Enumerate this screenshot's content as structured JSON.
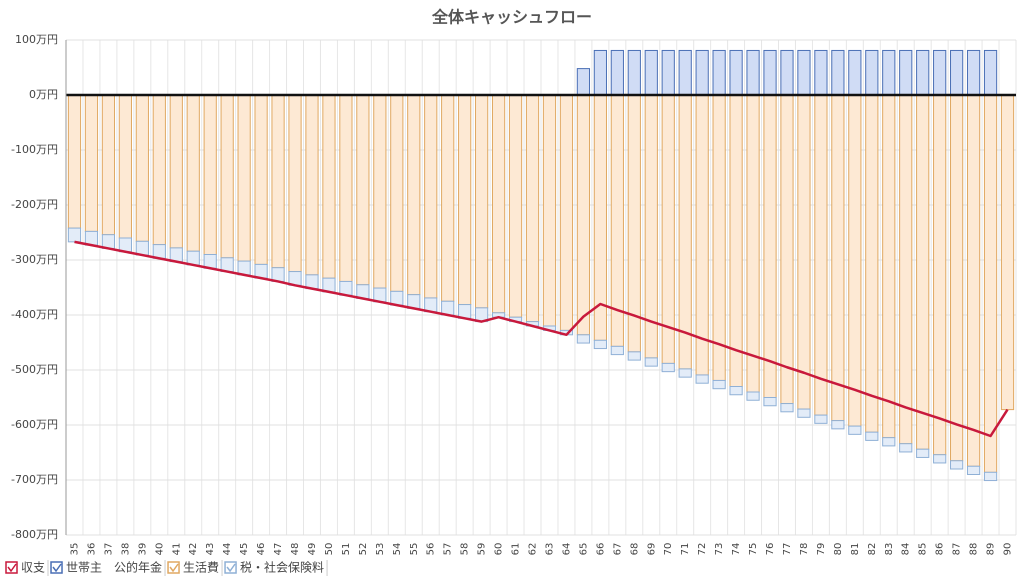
{
  "chart_data": {
    "type": "bar",
    "title": "全体キャッシュフロー",
    "categories": [
      "35",
      "36",
      "37",
      "38",
      "39",
      "40",
      "41",
      "42",
      "43",
      "44",
      "45",
      "46",
      "47",
      "48",
      "49",
      "50",
      "51",
      "52",
      "53",
      "54",
      "55",
      "56",
      "57",
      "58",
      "59",
      "60",
      "61",
      "62",
      "63",
      "64",
      "65",
      "66",
      "67",
      "68",
      "69",
      "70",
      "71",
      "72",
      "73",
      "74",
      "75",
      "76",
      "77",
      "78",
      "79",
      "80",
      "81",
      "82",
      "83",
      "84",
      "85",
      "86",
      "87",
      "88",
      "89",
      "90"
    ],
    "series": [
      {
        "name": "収支",
        "type": "line",
        "color": "#c8193c",
        "values": [
          -267,
          -273,
          -279,
          -285,
          -291,
          -297,
          -303,
          -309,
          -315,
          -321,
          -327,
          -333,
          -339,
          -346,
          -352,
          -358,
          -364,
          -370,
          -376,
          -382,
          -388,
          -394,
          -400,
          -406,
          -412,
          -404,
          -412,
          -420,
          -428,
          -436,
          -403,
          -380,
          -391,
          -401,
          -412,
          -422,
          -432,
          -443,
          -453,
          -464,
          -474,
          -484,
          -495,
          -505,
          -516,
          -526,
          -536,
          -547,
          -557,
          -568,
          -578,
          -588,
          -599,
          -609,
          -620,
          -572
        ]
      },
      {
        "name": "世帯主　公的年金",
        "type": "bar",
        "color": "#d0dcf5",
        "stroke": "#4a6fb5",
        "values": [
          0,
          0,
          0,
          0,
          0,
          0,
          0,
          0,
          0,
          0,
          0,
          0,
          0,
          0,
          0,
          0,
          0,
          0,
          0,
          0,
          0,
          0,
          0,
          0,
          0,
          0,
          0,
          0,
          0,
          0,
          48,
          81,
          81,
          81,
          81,
          81,
          81,
          81,
          81,
          81,
          81,
          81,
          81,
          81,
          81,
          81,
          81,
          81,
          81,
          81,
          81,
          81,
          81,
          81,
          81,
          0
        ]
      },
      {
        "name": "生活費",
        "type": "bar",
        "color": "#fde9d4",
        "stroke": "#e0a862",
        "values": [
          -242,
          -248,
          -254,
          -260,
          -266,
          -272,
          -278,
          -284,
          -290,
          -296,
          -302,
          -308,
          -314,
          -321,
          -327,
          -333,
          -339,
          -345,
          -351,
          -357,
          -363,
          -369,
          -375,
          -381,
          -387,
          -396,
          -404,
          -412,
          -420,
          -428,
          -436,
          -446,
          -457,
          -467,
          -478,
          -488,
          -498,
          -509,
          -519,
          -530,
          -540,
          -550,
          -561,
          -571,
          -582,
          -592,
          -602,
          -613,
          -623,
          -634,
          -644,
          -654,
          -665,
          -675,
          -686,
          -572
        ]
      },
      {
        "name": "税・社会保険料",
        "type": "bar",
        "color": "#e3ecf8",
        "stroke": "#8fb0d6",
        "values": [
          -25,
          -25,
          -25,
          -25,
          -25,
          -25,
          -25,
          -25,
          -25,
          -25,
          -25,
          -25,
          -25,
          -25,
          -25,
          -25,
          -25,
          -25,
          -25,
          -25,
          -25,
          -25,
          -25,
          -25,
          -25,
          -8,
          -8,
          -8,
          -8,
          -8,
          -15,
          -15,
          -15,
          -15,
          -15,
          -15,
          -15,
          -15,
          -15,
          -15,
          -15,
          -15,
          -15,
          -15,
          -15,
          -15,
          -15,
          -15,
          -15,
          -15,
          -15,
          -15,
          -15,
          -15,
          -15,
          0
        ]
      }
    ],
    "ylim": [
      -800,
      100
    ],
    "yticks": [
      {
        "value": 100,
        "label": "100万円"
      },
      {
        "value": 0,
        "label": "0万円"
      },
      {
        "value": -100,
        "label": "-100万円"
      },
      {
        "value": -200,
        "label": "-200万円"
      },
      {
        "value": -300,
        "label": "-300万円"
      },
      {
        "value": -400,
        "label": "-400万円"
      },
      {
        "value": -500,
        "label": "-500万円"
      },
      {
        "value": -600,
        "label": "-600万円"
      },
      {
        "value": -700,
        "label": "-700万円"
      },
      {
        "value": -800,
        "label": "-800万円"
      }
    ],
    "grid": true,
    "stacked": true,
    "legend": "bottom-left"
  }
}
